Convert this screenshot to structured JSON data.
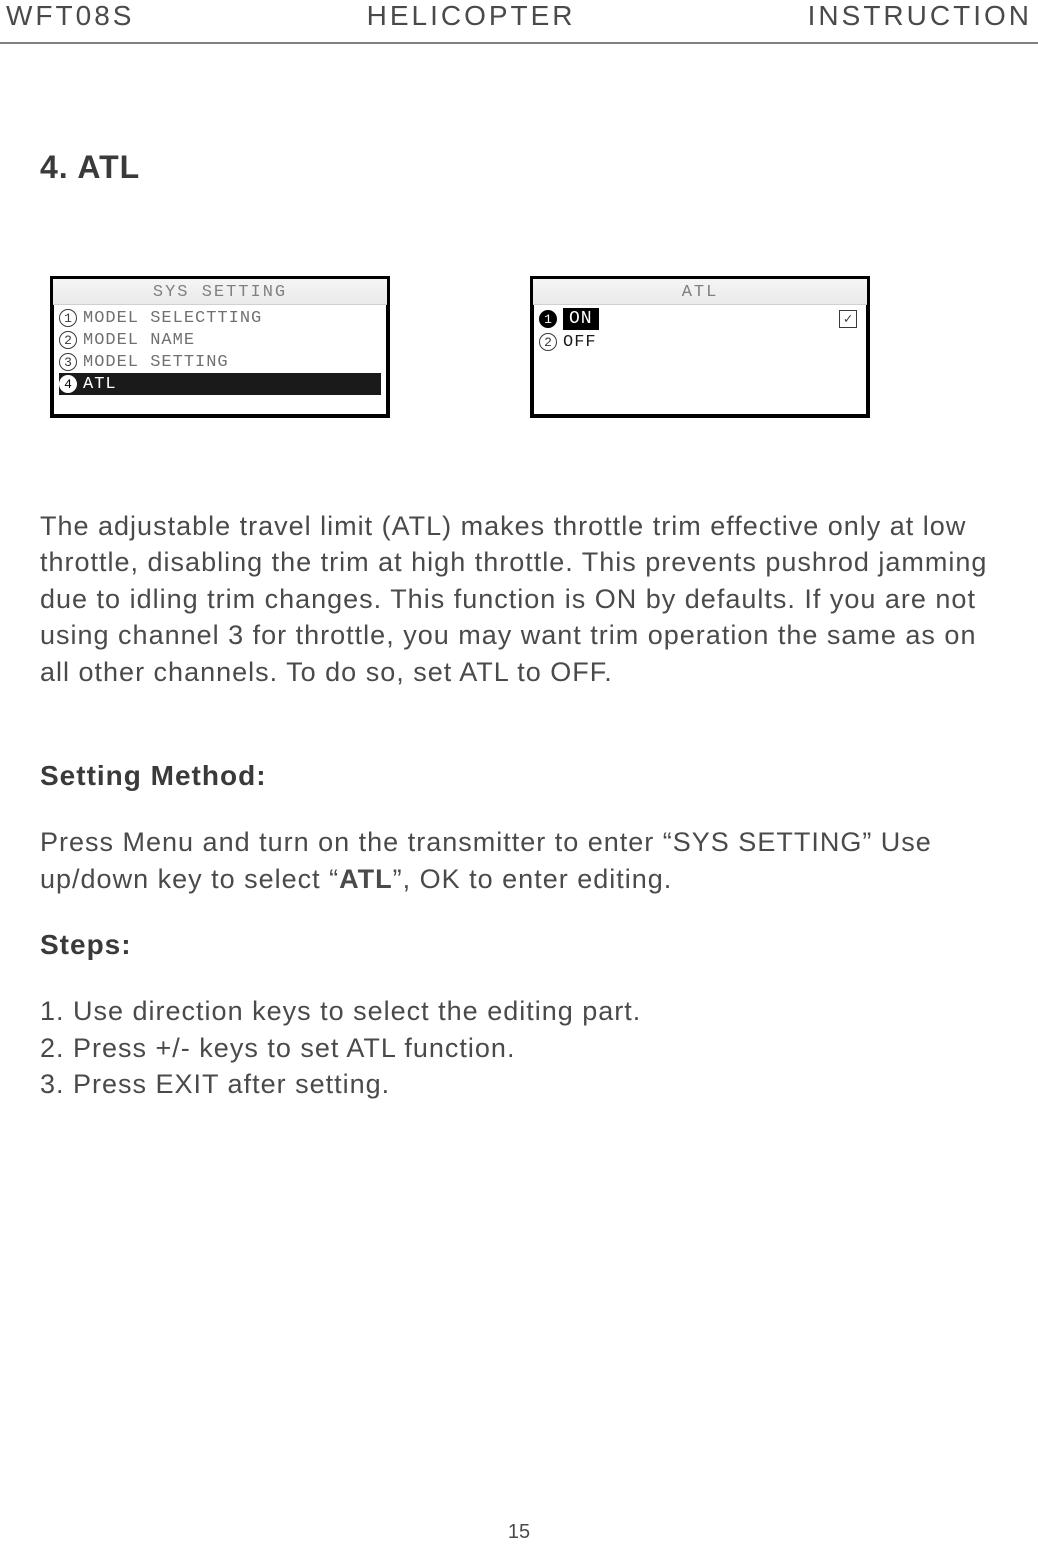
{
  "header": {
    "left": "WFT08S",
    "center": "HELICOPTER",
    "right": "INSTRUCTION"
  },
  "section_title": "4. ATL",
  "lcd1": {
    "title": "SYS SETTING",
    "rows": [
      {
        "n": "1",
        "label": "MODEL SELECTTING"
      },
      {
        "n": "2",
        "label": "MODEL NAME"
      },
      {
        "n": "3",
        "label": "MODEL SETTING"
      },
      {
        "n": "4",
        "label": "ATL",
        "selected": true
      }
    ]
  },
  "lcd2": {
    "title": "ATL",
    "rows": [
      {
        "n": "1",
        "label": "ON",
        "checked": true,
        "highlighted": true
      },
      {
        "n": "2",
        "label": "OFF"
      }
    ]
  },
  "description": "The adjustable travel limit (ATL) makes throttle trim effective only at low throttle, disabling the trim at high throttle. This prevents pushrod jamming due to idling trim changes. This function is ON by defaults. If you are not using channel 3 for throttle, you may want trim operation the same as on all other channels. To do so, set ATL to OFF.",
  "setting_method_heading": "Setting Method:",
  "setting_method_p1a": "Press Menu and turn on the transmitter to enter “SYS SETTING” Use up/down key to select “",
  "setting_method_bold": "ATL",
  "setting_method_p1b": "”, OK to enter editing.",
  "steps_heading": "Steps:",
  "steps": [
    "1. Use direction keys to select the editing part.",
    "2. Press +/- keys to set ATL function.",
    "3. Press EXIT after setting."
  ],
  "page_number": "15",
  "checkmark": "✓"
}
